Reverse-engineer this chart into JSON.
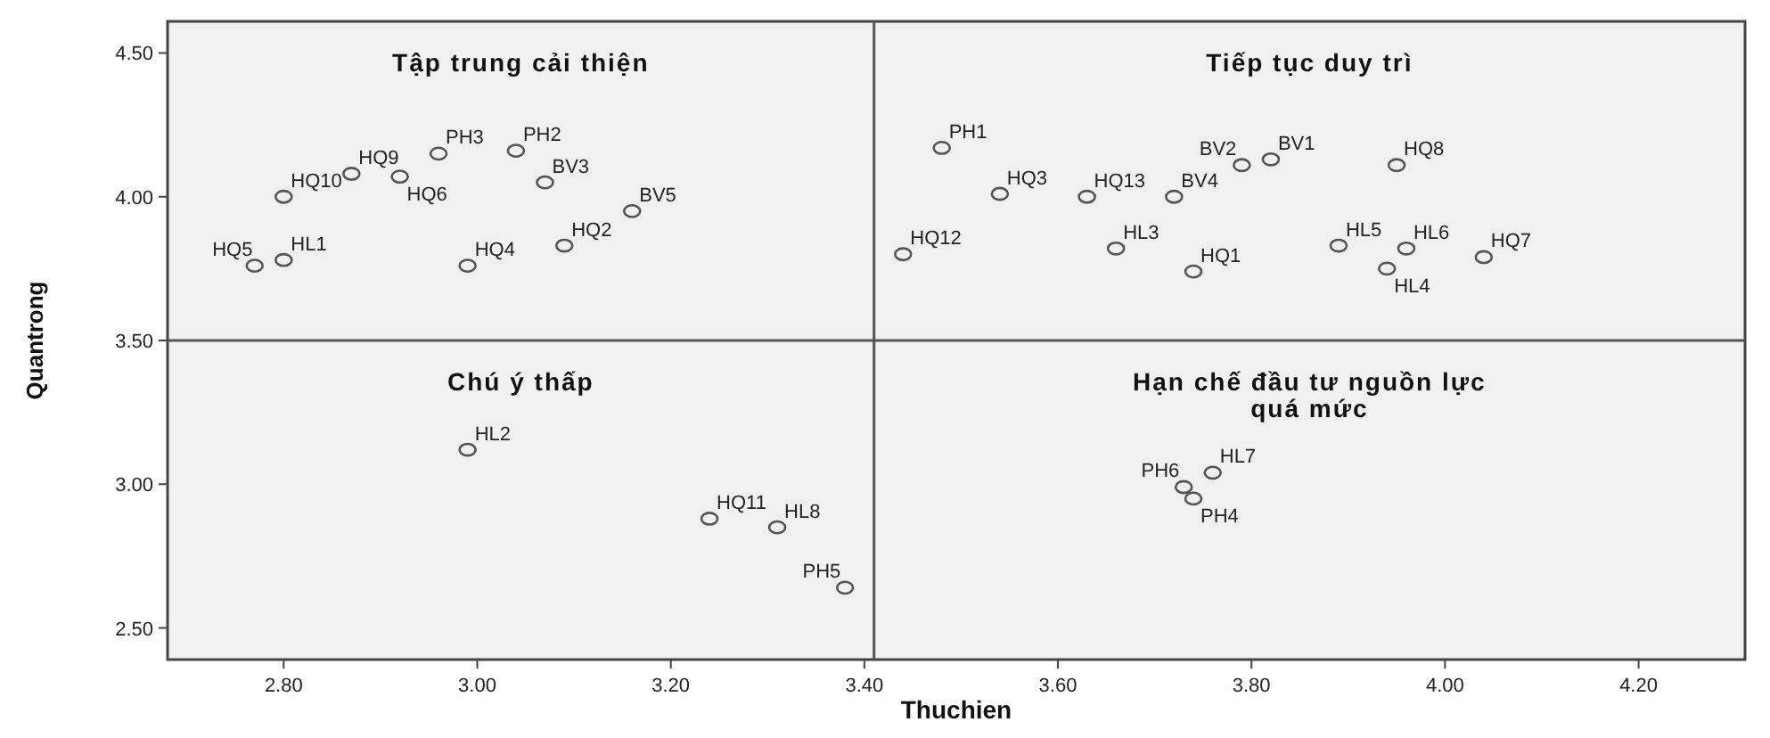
{
  "chart_data": {
    "type": "scatter",
    "xlabel": "Thuchien",
    "ylabel": "Quantrong",
    "xlim": [
      2.68,
      4.31
    ],
    "xticks": [
      {
        "value": 2.8,
        "label": "2.80"
      },
      {
        "value": 3.0,
        "label": "3.00"
      },
      {
        "value": 3.2,
        "label": "3.20"
      },
      {
        "value": 3.4,
        "label": "3.40"
      },
      {
        "value": 3.6,
        "label": "3.60"
      },
      {
        "value": 3.8,
        "label": "3.80"
      },
      {
        "value": 4.0,
        "label": "4.00"
      },
      {
        "value": 4.2,
        "label": "4.20"
      }
    ],
    "ylim": [
      2.39,
      4.61
    ],
    "yticks": [
      {
        "value": 2.5,
        "label": "2.50"
      },
      {
        "value": 3.0,
        "label": "3.00"
      },
      {
        "value": 3.5,
        "label": "3.50"
      },
      {
        "value": 4.0,
        "label": "4.00"
      },
      {
        "value": 4.5,
        "label": "4.50"
      }
    ],
    "grid": false,
    "marker": "circle",
    "series": [
      {
        "color": "#555555",
        "x": [
          2.8,
          2.87,
          2.77,
          2.8,
          2.92,
          2.96,
          3.04,
          3.07,
          3.16,
          3.09,
          2.99,
          3.48,
          3.54,
          3.63,
          3.72,
          3.79,
          3.82,
          3.95,
          3.44,
          3.66,
          3.74,
          3.89,
          3.96,
          3.94,
          4.04,
          2.99,
          3.24,
          3.31,
          3.38,
          3.76,
          3.73,
          3.74
        ],
        "values": [
          4.0,
          4.08,
          3.76,
          3.78,
          4.07,
          4.15,
          4.16,
          4.05,
          3.95,
          3.83,
          3.76,
          4.17,
          4.01,
          4.0,
          4.0,
          4.11,
          4.13,
          4.11,
          3.8,
          3.82,
          3.74,
          3.83,
          3.82,
          3.75,
          3.79,
          3.12,
          2.88,
          2.85,
          2.64,
          3.04,
          2.99,
          2.95
        ]
      }
    ],
    "ref_lines": [
      {
        "axis": "x",
        "value": 3.41,
        "color": "#555555"
      },
      {
        "axis": "y",
        "value": 3.5,
        "color": "#555555"
      }
    ],
    "annotations": [
      "Tập trung cải thiện",
      "Tiếp tục duy trì",
      "Chú ý thấp",
      "Hạn chế đầu tư nguồn lực\nquá mức",
      {
        "text": "HQ10",
        "x": 2.8,
        "y": 4.0
      },
      {
        "text": "HQ9",
        "x": 2.87,
        "y": 4.08
      },
      {
        "text": "HQ5",
        "x": 2.77,
        "y": 3.76
      },
      {
        "text": "HL1",
        "x": 2.8,
        "y": 3.78
      },
      {
        "text": "HQ6",
        "x": 2.92,
        "y": 4.07
      },
      {
        "text": "PH3",
        "x": 2.96,
        "y": 4.15
      },
      {
        "text": "PH2",
        "x": 3.04,
        "y": 4.16
      },
      {
        "text": "BV3",
        "x": 3.07,
        "y": 4.05
      },
      {
        "text": "BV5",
        "x": 3.16,
        "y": 3.95
      },
      {
        "text": "HQ2",
        "x": 3.09,
        "y": 3.83
      },
      {
        "text": "HQ4",
        "x": 2.99,
        "y": 3.76
      },
      {
        "text": "PH1",
        "x": 3.48,
        "y": 4.17
      },
      {
        "text": "HQ3",
        "x": 3.54,
        "y": 4.01
      },
      {
        "text": "HQ13",
        "x": 3.63,
        "y": 4.0
      },
      {
        "text": "BV4",
        "x": 3.72,
        "y": 4.0
      },
      {
        "text": "BV2",
        "x": 3.79,
        "y": 4.11
      },
      {
        "text": "BV1",
        "x": 3.82,
        "y": 4.13
      },
      {
        "text": "HQ8",
        "x": 3.95,
        "y": 4.11
      },
      {
        "text": "HQ12",
        "x": 3.44,
        "y": 3.8
      },
      {
        "text": "HL3",
        "x": 3.66,
        "y": 3.82
      },
      {
        "text": "HQ1",
        "x": 3.74,
        "y": 3.74
      },
      {
        "text": "HL5",
        "x": 3.89,
        "y": 3.83
      },
      {
        "text": "HL6",
        "x": 3.96,
        "y": 3.82
      },
      {
        "text": "HL4",
        "x": 3.94,
        "y": 3.75
      },
      {
        "text": "HQ7",
        "x": 4.04,
        "y": 3.79
      },
      {
        "text": "HL2",
        "x": 2.99,
        "y": 3.12
      },
      {
        "text": "HQ11",
        "x": 3.24,
        "y": 2.88
      },
      {
        "text": "HL8",
        "x": 3.31,
        "y": 2.85
      },
      {
        "text": "PH5",
        "x": 3.38,
        "y": 2.64
      },
      {
        "text": "HL7",
        "x": 3.76,
        "y": 3.04
      },
      {
        "text": "PH6",
        "x": 3.73,
        "y": 2.99
      },
      {
        "text": "PH4",
        "x": 3.74,
        "y": 2.95
      }
    ]
  }
}
